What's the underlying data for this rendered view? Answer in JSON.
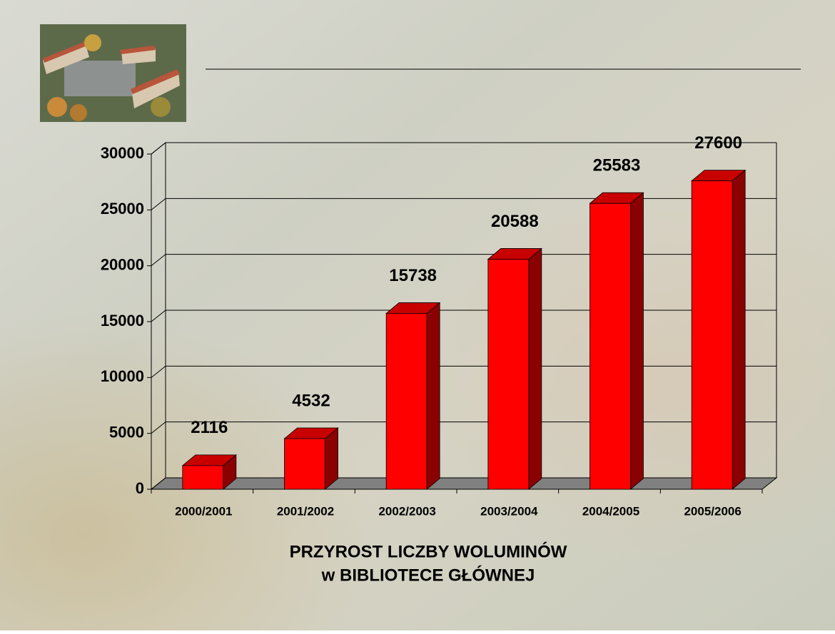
{
  "chart_data": {
    "type": "bar3d",
    "title_lines": [
      "PRZYROST LICZBY WOLUMINÓW",
      "w BIBLIOTECE GŁÓWNEJ"
    ],
    "categories": [
      "2000/2001",
      "2001/2002",
      "2002/2003",
      "2003/2004",
      "2004/2005",
      "2005/2006"
    ],
    "values": [
      2116,
      4532,
      15738,
      20588,
      25583,
      27600
    ],
    "color": "#ff0000",
    "side_color": "#8b0000",
    "top_color": "#c80000",
    "ylim": [
      0,
      30000
    ],
    "yticks": [
      0,
      5000,
      10000,
      15000,
      20000,
      25000,
      30000
    ],
    "grid": true
  }
}
